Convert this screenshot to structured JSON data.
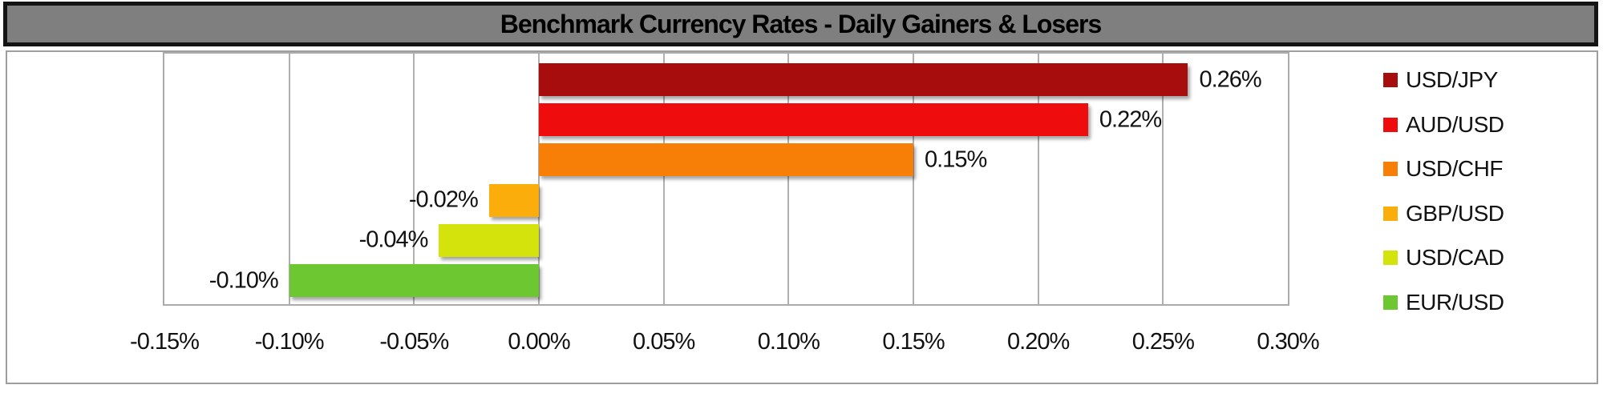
{
  "title_bar": {
    "title": "Benchmark Currency Rates - Daily Gainers & Losers",
    "background": "#7F7F7F",
    "border_color": "#141414",
    "text_color": "#000000"
  },
  "colors": {
    "chart_border": "#9E9E9E",
    "plot_border": "#ABABAB",
    "gridline": "#B0B0B0",
    "label_text": "#111111"
  },
  "chart_data": {
    "type": "bar",
    "orientation": "horizontal",
    "title": "Benchmark Currency Rates - Daily Gainers & Losers",
    "series": [
      {
        "name": "USD/JPY",
        "value": 0.26,
        "label": "0.26%",
        "color": "#A80D0E"
      },
      {
        "name": "AUD/USD",
        "value": 0.22,
        "label": "0.22%",
        "color": "#EE0C0C"
      },
      {
        "name": "USD/CHF",
        "value": 0.15,
        "label": "0.15%",
        "color": "#F77F08"
      },
      {
        "name": "GBP/USD",
        "value": -0.02,
        "label": "-0.02%",
        "color": "#FAAD0B"
      },
      {
        "name": "USD/CAD",
        "value": -0.04,
        "label": "-0.04%",
        "color": "#D5E30D"
      },
      {
        "name": "EUR/USD",
        "value": -0.1,
        "label": "-0.10%",
        "color": "#6DC730"
      }
    ],
    "xlabel": "",
    "ylabel": "",
    "x_axis": {
      "min": -0.15,
      "max": 0.3,
      "step": 0.05,
      "unit": "%",
      "tick_labels": [
        "-0.15%",
        "-0.10%",
        "-0.05%",
        "0.00%",
        "0.05%",
        "0.10%",
        "0.15%",
        "0.20%",
        "0.25%",
        "0.30%"
      ]
    },
    "legend": {
      "position": "right",
      "entries": [
        "USD/JPY",
        "AUD/USD",
        "USD/CHF",
        "GBP/USD",
        "USD/CAD",
        "EUR/USD"
      ]
    },
    "grid": "vertical"
  }
}
